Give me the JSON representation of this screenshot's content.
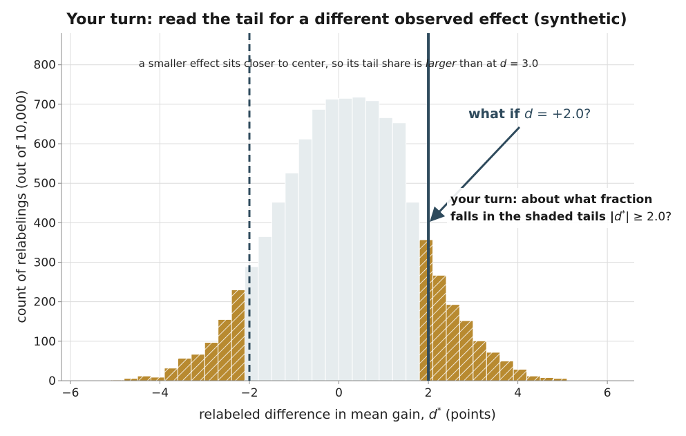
{
  "chart_data": {
    "type": "bar",
    "title": "Your turn: read the tail for a different observed effect (synthetic)",
    "xlabel_prefix": "relabeled difference in mean gain, ",
    "xlabel_var": "d",
    "xlabel_sup": "*",
    "xlabel_suffix": " (points)",
    "ylabel": "count of relabelings (out of 10,000)",
    "xlim": [
      -6.2,
      6.6
    ],
    "ylim": [
      0,
      880
    ],
    "xticks": [
      -6,
      -4,
      -2,
      0,
      2,
      4,
      6
    ],
    "xtick_labels": [
      "−6",
      "−4",
      "−2",
      "0",
      "2",
      "4",
      "6"
    ],
    "yticks": [
      0,
      100,
      200,
      300,
      400,
      500,
      600,
      700,
      800
    ],
    "ytick_labels": [
      "0",
      "100",
      "200",
      "300",
      "400",
      "500",
      "600",
      "700",
      "800"
    ],
    "grid": true,
    "bin_width": 0.3,
    "bin_lefts": [
      -6.0,
      -5.7,
      -5.4,
      -5.1,
      -4.8,
      -4.5,
      -4.2,
      -3.9,
      -3.6,
      -3.3,
      -3.0,
      -2.7,
      -2.4,
      -2.1,
      -1.8,
      -1.5,
      -1.2,
      -0.9,
      -0.6,
      -0.3,
      0.0,
      0.3,
      0.6,
      0.9,
      1.2,
      1.5,
      1.8,
      2.1,
      2.4,
      2.7,
      3.0,
      3.3,
      3.6,
      3.9,
      4.2,
      4.5,
      4.8,
      5.1
    ],
    "counts": [
      1,
      1,
      1,
      2,
      6,
      12,
      9,
      32,
      57,
      67,
      97,
      155,
      230,
      289,
      365,
      452,
      526,
      612,
      687,
      713,
      715,
      718,
      709,
      666,
      653,
      452,
      357,
      267,
      193,
      152,
      101,
      72,
      50,
      29,
      12,
      8,
      6,
      1
    ],
    "tail_color": "#b88a30",
    "center_color": "#e6ecee",
    "observed_d": 2.0,
    "observed_line_color": "#2e4a5c",
    "annotations": {
      "note_text": "a smaller effect sits closer to center, so its tail share is ",
      "note_italic": "larger",
      "note_after": " than at ",
      "note_var": "d",
      "note_value": " = 3.0",
      "whatif_bold": "what if ",
      "whatif_var": "d",
      "whatif_value": " = +2.0?",
      "prompt_line1": "your turn: about what fraction",
      "prompt_line2_a": "falls in the shaded tails  |",
      "prompt_line2_var": "d",
      "prompt_line2_sup": "*",
      "prompt_line2_b": "| ≥ 2.0?"
    }
  }
}
